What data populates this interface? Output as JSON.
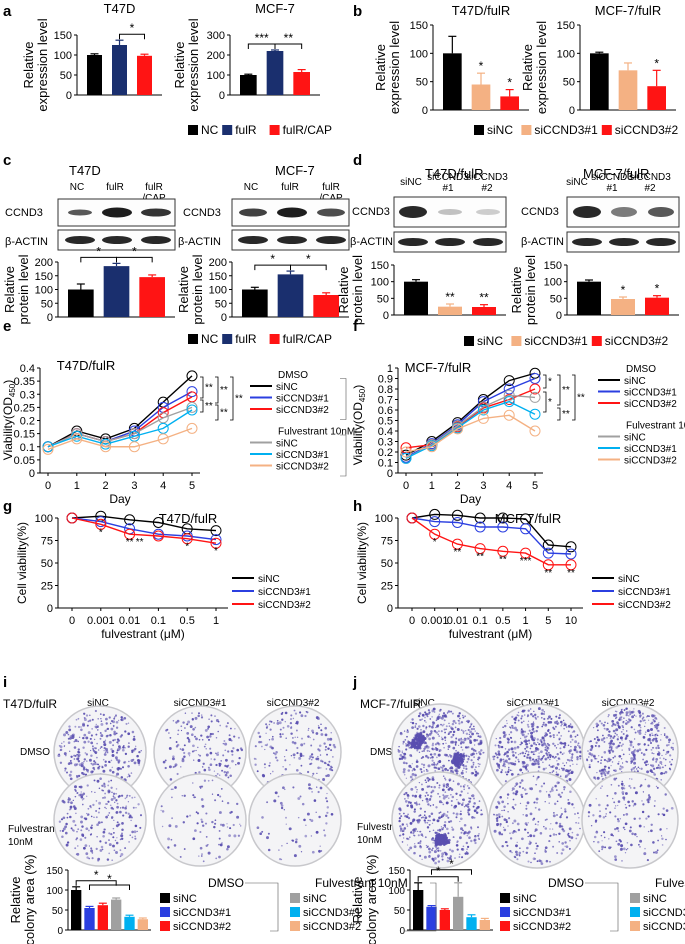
{
  "panel_labels": [
    "a",
    "b",
    "c",
    "d",
    "e",
    "f",
    "g",
    "h",
    "i",
    "j"
  ],
  "colors": {
    "nc": "#000000",
    "fulr": "#1a2f6e",
    "cap": "#ff1414",
    "sinc": "#000000",
    "si1": "#f4b183",
    "si2": "#ff1414",
    "gray": "#a0a0a0",
    "cyan": "#00b0f0",
    "blue": "#2b3fe0",
    "dish": "#5a4fb0"
  },
  "asterisks": {
    "s1": "*",
    "s2": "**",
    "s3": "***"
  },
  "y_titles": {
    "rel_expr": "Relative expression level",
    "rel_prot": "Relative protein level",
    "viab_od": "Viability(OD",
    "od_sub": "450",
    "od_close": ")",
    "cell_viab": "Cell viability(%)",
    "colony": "Relative colony area (%)"
  },
  "x_titles": {
    "day": "Day",
    "fulv": "fulvestrant (μM)"
  },
  "proteins": {
    "ccnd3": "CCND3",
    "actin": "β-ACTIN"
  },
  "legends": {
    "abc": [
      "NC",
      "fulR",
      "fulR/CAP"
    ],
    "si": [
      "siNC",
      "siCCND3#1",
      "siCCND3#2"
    ],
    "dmso": "DMSO",
    "fulv10": "Fulvestrant 10nM"
  },
  "blot_headers": {
    "b": [
      "NC",
      "fulR",
      "fulR\n/CAP"
    ],
    "d": [
      "siNC",
      "siCCND3\n#1",
      "siCCND3\n#2"
    ]
  },
  "ij": {
    "cols": [
      "siNC",
      "siCCND3#1",
      "siCCND3#2"
    ],
    "rows": [
      "DMSO",
      "Fulvestrant\n10nM"
    ]
  },
  "chart_data": [
    {
      "id": "a1",
      "type": "bar",
      "title": "T47D",
      "categories": [
        "NC",
        "fulR",
        "fulR/CAP"
      ],
      "values": [
        100,
        125,
        98
      ],
      "errors": [
        3,
        12,
        4
      ],
      "ylim": [
        0,
        150
      ],
      "yticks": [
        0,
        50,
        100,
        150
      ],
      "ylabel": "Relative expression level",
      "sig": [
        {
          "from": 1,
          "to": 2,
          "label": "*"
        }
      ]
    },
    {
      "id": "a2",
      "type": "bar",
      "title": "MCF-7",
      "categories": [
        "NC",
        "fulR",
        "fulR/CAP"
      ],
      "values": [
        100,
        220,
        115
      ],
      "errors": [
        4,
        5,
        12
      ],
      "ylim": [
        0,
        300
      ],
      "yticks": [
        0,
        100,
        200,
        300
      ],
      "ylabel": "Relative expression level",
      "sig": [
        {
          "from": 0,
          "to": 1,
          "label": "***"
        },
        {
          "from": 1,
          "to": 2,
          "label": "**"
        }
      ]
    },
    {
      "id": "c1",
      "type": "bar",
      "title": "T47D/fulR",
      "categories": [
        "siNC",
        "siCCND3#1",
        "siCCND3#2"
      ],
      "values": [
        100,
        45,
        24
      ],
      "errors": [
        30,
        20,
        12
      ],
      "ylim": [
        0,
        150
      ],
      "yticks": [
        0,
        50,
        100,
        150
      ],
      "ylabel": "Relative expression level",
      "stars": [
        "",
        "*",
        "*"
      ]
    },
    {
      "id": "c2",
      "type": "bar",
      "title": "MCF-7/fulR",
      "categories": [
        "siNC",
        "siCCND3#1",
        "siCCND3#2"
      ],
      "values": [
        100,
        70,
        42
      ],
      "errors": [
        2,
        13,
        28
      ],
      "ylim": [
        0,
        150
      ],
      "yticks": [
        0,
        50,
        100,
        150
      ],
      "ylabel": "Relative expression level",
      "stars": [
        "",
        "",
        "*"
      ]
    },
    {
      "id": "b1",
      "type": "bar",
      "title": "T47D",
      "categories": [
        "NC",
        "fulR",
        "fulR/CAP"
      ],
      "values": [
        100,
        185,
        145
      ],
      "errors": [
        20,
        10,
        8
      ],
      "ylim": [
        0,
        200
      ],
      "yticks": [
        0,
        50,
        100,
        150,
        200
      ],
      "ylabel": "Relative protein level",
      "sig": [
        {
          "from": 0,
          "to": 1,
          "label": "*"
        },
        {
          "from": 1,
          "to": 2,
          "label": "*"
        }
      ]
    },
    {
      "id": "b2",
      "type": "bar",
      "title": "MCF-7",
      "categories": [
        "NC",
        "fulR",
        "fulR/CAP"
      ],
      "values": [
        100,
        155,
        80
      ],
      "errors": [
        8,
        12,
        8
      ],
      "ylim": [
        0,
        200
      ],
      "yticks": [
        0,
        50,
        100,
        150,
        200
      ],
      "ylabel": "Relative protein level",
      "sig": [
        {
          "from": 0,
          "to": 1,
          "label": "*"
        },
        {
          "from": 1,
          "to": 2,
          "label": "*"
        }
      ]
    },
    {
      "id": "d1",
      "type": "bar",
      "title": "T47D/fulR",
      "categories": [
        "siNC",
        "siCCND3#1",
        "siCCND3#2"
      ],
      "values": [
        100,
        25,
        24
      ],
      "errors": [
        6,
        8,
        7
      ],
      "ylim": [
        0,
        150
      ],
      "yticks": [
        0,
        50,
        100,
        150
      ],
      "ylabel": "Relative protein level",
      "stars": [
        "",
        "**",
        "**"
      ]
    },
    {
      "id": "d2",
      "type": "bar",
      "title": "MCF-7/fulR",
      "categories": [
        "siNC",
        "siCCND3#1",
        "siCCND3#2"
      ],
      "values": [
        100,
        48,
        52
      ],
      "errors": [
        5,
        6,
        6
      ],
      "ylim": [
        0,
        150
      ],
      "yticks": [
        0,
        50,
        100,
        150
      ],
      "ylabel": "Relative protein level",
      "stars": [
        "",
        "*",
        "*"
      ]
    },
    {
      "id": "e",
      "type": "line",
      "title": "T47D/fulR",
      "x": [
        0,
        1,
        2,
        3,
        4,
        5
      ],
      "xlabel": "Day",
      "ylim": [
        0,
        0.4
      ],
      "yticks": [
        0,
        0.05,
        0.1,
        0.15,
        0.2,
        0.25,
        0.3,
        0.35,
        0.4
      ],
      "ytick_labels": [
        "0",
        "0.05",
        "0.1",
        "0.15",
        "0.2",
        "0.25",
        "0.3",
        "0.35",
        "0.4"
      ],
      "series": [
        {
          "name": "siNC",
          "group": "DMSO",
          "color": "#000000",
          "values": [
            0.1,
            0.16,
            0.13,
            0.17,
            0.27,
            0.37
          ]
        },
        {
          "name": "siCCND3#1",
          "group": "DMSO",
          "color": "#2b3fe0",
          "values": [
            0.1,
            0.15,
            0.12,
            0.16,
            0.25,
            0.31
          ]
        },
        {
          "name": "siCCND3#2",
          "group": "DMSO",
          "color": "#ff1414",
          "values": [
            0.1,
            0.15,
            0.12,
            0.15,
            0.23,
            0.29
          ]
        },
        {
          "name": "siNC",
          "group": "Fulvestrant 10nM",
          "color": "#a0a0a0",
          "values": [
            0.1,
            0.15,
            0.12,
            0.15,
            0.21,
            0.25
          ]
        },
        {
          "name": "siCCND3#1",
          "group": "Fulvestrant 10nM",
          "color": "#00b0f0",
          "values": [
            0.1,
            0.14,
            0.11,
            0.14,
            0.17,
            0.24
          ]
        },
        {
          "name": "siCCND3#2",
          "group": "Fulvestrant 10nM",
          "color": "#f4b183",
          "values": [
            0.09,
            0.13,
            0.1,
            0.1,
            0.13,
            0.17
          ]
        }
      ]
    },
    {
      "id": "f",
      "type": "line",
      "title": "MCF-7/fulR",
      "x": [
        0,
        1,
        2,
        3,
        4,
        5
      ],
      "xlabel": "Day",
      "ylim": [
        0,
        1.0
      ],
      "yticks": [
        0,
        0.1,
        0.2,
        0.3,
        0.4,
        0.5,
        0.6,
        0.7,
        0.8,
        0.9,
        1.0
      ],
      "ytick_labels": [
        "0",
        "0.1",
        "0.2",
        "0.3",
        "0.4",
        "0.5",
        "0.6",
        "0.7",
        "0.8",
        "0.9",
        "1"
      ],
      "series": [
        {
          "name": "siNC",
          "group": "DMSO",
          "color": "#000000",
          "values": [
            0.17,
            0.3,
            0.48,
            0.7,
            0.88,
            0.95
          ]
        },
        {
          "name": "siCCND3#1",
          "group": "DMSO",
          "color": "#2b3fe0",
          "values": [
            0.15,
            0.28,
            0.46,
            0.68,
            0.8,
            0.9
          ]
        },
        {
          "name": "siCCND3#2",
          "group": "DMSO",
          "color": "#ff1414",
          "values": [
            0.24,
            0.27,
            0.44,
            0.62,
            0.7,
            0.8
          ]
        },
        {
          "name": "siNC",
          "group": "Fulvestrant 10nM",
          "color": "#a0a0a0",
          "values": [
            0.14,
            0.27,
            0.45,
            0.63,
            0.74,
            0.72
          ]
        },
        {
          "name": "siCCND3#1",
          "group": "Fulvestrant 10nM",
          "color": "#00b0f0",
          "values": [
            0.14,
            0.26,
            0.43,
            0.6,
            0.68,
            0.56
          ]
        },
        {
          "name": "siCCND3#2",
          "group": "Fulvestrant 10nM",
          "color": "#f4b183",
          "values": [
            0.2,
            0.25,
            0.42,
            0.52,
            0.55,
            0.4
          ]
        }
      ]
    },
    {
      "id": "g",
      "type": "line",
      "title": "T47D/fulR",
      "categories": [
        "0",
        "0.001",
        "0.01",
        "0.1",
        "0.5",
        "1"
      ],
      "xlabel": "fulvestrant (μM)",
      "ylim": [
        0,
        100
      ],
      "yticks": [
        0,
        25,
        50,
        75,
        100
      ],
      "series": [
        {
          "name": "siNC",
          "color": "#000000",
          "values": [
            100,
            102,
            98,
            95,
            88,
            86
          ]
        },
        {
          "name": "siCCND3#1",
          "color": "#2b3fe0",
          "values": [
            100,
            96,
            88,
            82,
            80,
            76
          ]
        },
        {
          "name": "siCCND3#2",
          "color": "#ff1414",
          "values": [
            100,
            93,
            82,
            80,
            77,
            72
          ]
        }
      ],
      "stars": [
        [
          "",
          ""
        ],
        [
          "*",
          ""
        ],
        [
          "**",
          "**"
        ],
        [
          "",
          ""
        ],
        [
          "*",
          ""
        ],
        [
          "*",
          ""
        ]
      ]
    },
    {
      "id": "h",
      "type": "line",
      "title": "MCF-7/fulR",
      "categories": [
        "0",
        "0.001",
        "0.01",
        "0.1",
        "0.5",
        "1",
        "5",
        "10"
      ],
      "xlabel": "fulvestrant (μM)",
      "ylim": [
        0,
        100
      ],
      "yticks": [
        0,
        25,
        50,
        75,
        100
      ],
      "series": [
        {
          "name": "siNC",
          "color": "#000000",
          "values": [
            100,
            104,
            103,
            100,
            100,
            99,
            70,
            68
          ]
        },
        {
          "name": "siCCND3#1",
          "color": "#2b3fe0",
          "values": [
            100,
            96,
            95,
            90,
            90,
            88,
            61,
            60
          ]
        },
        {
          "name": "siCCND3#2",
          "color": "#ff1414",
          "values": [
            100,
            82,
            71,
            66,
            63,
            61,
            48,
            48
          ]
        }
      ],
      "stars": [
        "",
        "*",
        "**",
        "**",
        "**",
        "***",
        "**",
        "**"
      ]
    },
    {
      "id": "i",
      "type": "bar",
      "categories": [
        "DMSO siNC",
        "DMSO siCCND3#1",
        "DMSO siCCND3#2",
        "Fulv siNC",
        "Fulv siCCND3#1",
        "Fulv siCCND3#2"
      ],
      "values": [
        100,
        55,
        62,
        76,
        33,
        27
      ],
      "errors": [
        8,
        4,
        5,
        4,
        4,
        3
      ],
      "ylim": [
        0,
        150
      ],
      "yticks": [
        0,
        50,
        100,
        150
      ],
      "ylabel": "Relative colony area (%)",
      "sig": [
        {
          "from": 0,
          "to": 3,
          "label": "*"
        },
        {
          "from": 1,
          "to": 4,
          "label": "*"
        }
      ]
    },
    {
      "id": "j",
      "type": "bar",
      "categories": [
        "DMSO siNC",
        "DMSO siCCND3#1",
        "DMSO siCCND3#2",
        "Fulv siNC",
        "Fulv siCCND3#1",
        "Fulv siCCND3#2"
      ],
      "values": [
        100,
        58,
        50,
        83,
        32,
        25
      ],
      "errors": [
        18,
        3,
        3,
        35,
        6,
        4
      ],
      "ylim": [
        0,
        150
      ],
      "yticks": [
        0,
        50,
        100,
        150
      ],
      "ylabel": "Relative colony area (%)",
      "sig": [
        {
          "from": 0,
          "to": 3,
          "label": "*"
        },
        {
          "from": 1,
          "to": 4,
          "label": "*"
        }
      ]
    }
  ]
}
